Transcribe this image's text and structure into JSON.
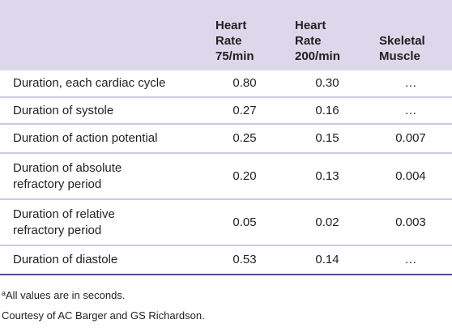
{
  "table": {
    "header": [
      null,
      "Heart Rate 75/min",
      "Heart Rate 200/min",
      "Skeletal Muscle"
    ],
    "rows": [
      [
        "Duration, each cardiac cycle",
        "0.80",
        "0.30",
        "…"
      ],
      [
        "Duration of systole",
        "0.27",
        "0.16",
        "…"
      ],
      [
        "Duration of action potential",
        "0.25",
        "0.15",
        "0.007"
      ],
      [
        "Duration of absolute refractory period",
        "0.20",
        "0.13",
        "0.004"
      ],
      [
        "Duration of relative refractory period",
        "0.05",
        "0.02",
        "0.003"
      ],
      [
        "Duration of diastole",
        "0.53",
        "0.14",
        "…"
      ]
    ]
  },
  "footnotes": [
    {
      "mark": "a",
      "text": "All values are in seconds."
    },
    {
      "text": "Courtesy of AC Barger and GS Richardson."
    }
  ]
}
